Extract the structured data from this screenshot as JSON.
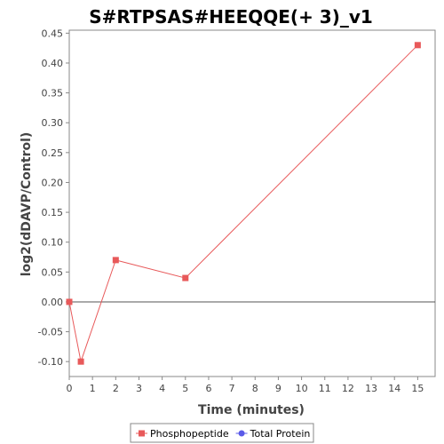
{
  "chart_data": {
    "type": "line",
    "title": "S#RTPSAS#HEEQQE(+ 3)_v1",
    "xlabel": "Time (minutes)",
    "ylabel": "log2(dDAVP/Control)",
    "xlim": [
      0,
      15.75
    ],
    "ylim": [
      -0.125,
      0.455
    ],
    "xticks": [
      0,
      1,
      2,
      3,
      4,
      5,
      6,
      7,
      8,
      9,
      10,
      11,
      12,
      13,
      14,
      15
    ],
    "yticks": [
      -0.1,
      -0.05,
      0.0,
      0.05,
      0.1,
      0.15,
      0.2,
      0.25,
      0.3,
      0.35,
      0.4,
      0.45
    ],
    "ytick_labels": [
      "-0.10",
      "-0.05",
      "0.00",
      "0.05",
      "0.10",
      "0.15",
      "0.20",
      "0.25",
      "0.30",
      "0.35",
      "0.40",
      "0.45"
    ],
    "zero_line": true,
    "grid": false,
    "legend_position": "bottom",
    "series": [
      {
        "name": "Phosphopeptide",
        "color": "#e8595a",
        "marker": "square",
        "x": [
          0,
          0.5,
          2,
          5,
          15
        ],
        "y": [
          0.0,
          -0.1,
          0.07,
          0.04,
          0.43
        ]
      },
      {
        "name": "Total Protein",
        "color": "#5a5ae8",
        "marker": "circle",
        "x": [],
        "y": []
      }
    ]
  }
}
